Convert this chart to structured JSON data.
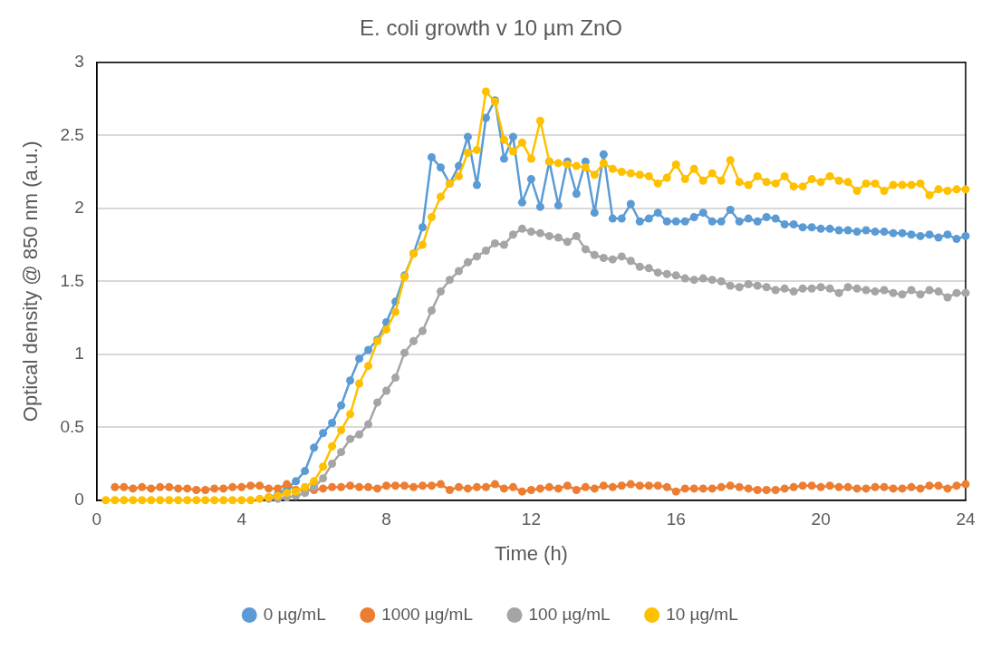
{
  "chart_data": {
    "type": "line",
    "title": "E. coli growth v 10 µm ZnO",
    "xlabel": "Time (h)",
    "ylabel": "Optical density @ 850 nm (a.u.)",
    "x": [
      0.25,
      0.5,
      0.75,
      1,
      1.25,
      1.5,
      1.75,
      2,
      2.25,
      2.5,
      2.75,
      3,
      3.25,
      3.5,
      3.75,
      4,
      4.25,
      4.5,
      4.75,
      5,
      5.25,
      5.5,
      5.75,
      6,
      6.25,
      6.5,
      6.75,
      7,
      7.25,
      7.5,
      7.75,
      8,
      8.25,
      8.5,
      8.75,
      9,
      9.25,
      9.5,
      9.75,
      10,
      10.25,
      10.5,
      10.75,
      11,
      11.25,
      11.5,
      11.75,
      12,
      12.25,
      12.5,
      12.75,
      13,
      13.25,
      13.5,
      13.75,
      14,
      14.25,
      14.5,
      14.75,
      15,
      15.25,
      15.5,
      15.75,
      16,
      16.25,
      16.5,
      16.75,
      17,
      17.25,
      17.5,
      17.75,
      18,
      18.25,
      18.5,
      18.75,
      19,
      19.25,
      19.5,
      19.75,
      20,
      20.25,
      20.5,
      20.75,
      21,
      21.25,
      21.5,
      21.75,
      22,
      22.25,
      22.5,
      22.75,
      23,
      23.25,
      23.5,
      23.75,
      24
    ],
    "series": [
      {
        "name": "0 µg/mL",
        "color": "#5b9bd5",
        "values": [
          null,
          null,
          null,
          null,
          null,
          null,
          null,
          null,
          null,
          null,
          null,
          null,
          null,
          null,
          null,
          null,
          null,
          null,
          0.02,
          0.04,
          0.08,
          0.13,
          0.2,
          0.36,
          0.46,
          0.53,
          0.65,
          0.82,
          0.97,
          1.03,
          1.1,
          1.22,
          1.36,
          1.54,
          1.69,
          1.87,
          2.35,
          2.28,
          2.17,
          2.29,
          2.49,
          2.16,
          2.62,
          2.74,
          2.34,
          2.49,
          2.04,
          2.2,
          2.01,
          2.32,
          2.02,
          2.32,
          2.1,
          2.32,
          1.97,
          2.37,
          1.93,
          1.93,
          2.03,
          1.91,
          1.93,
          1.97,
          1.91,
          1.91,
          1.91,
          1.94,
          1.97,
          1.91,
          1.91,
          1.99,
          1.91,
          1.93,
          1.91,
          1.94,
          1.93,
          1.89,
          1.89,
          1.87,
          1.87,
          1.86,
          1.86,
          1.85,
          1.85,
          1.84,
          1.85,
          1.84,
          1.84,
          1.83,
          1.83,
          1.82,
          1.81,
          1.82,
          1.8,
          1.82,
          1.79,
          1.81
        ]
      },
      {
        "name": "1000 µg/mL",
        "color": "#ed7d31",
        "values": [
          null,
          0.09,
          0.09,
          0.08,
          0.09,
          0.08,
          0.09,
          0.09,
          0.08,
          0.08,
          0.07,
          0.07,
          0.08,
          0.08,
          0.09,
          0.09,
          0.1,
          0.1,
          0.08,
          0.08,
          0.11,
          0.07,
          0.07,
          0.07,
          0.08,
          0.09,
          0.09,
          0.1,
          0.09,
          0.09,
          0.08,
          0.1,
          0.1,
          0.1,
          0.09,
          0.1,
          0.1,
          0.11,
          0.07,
          0.09,
          0.08,
          0.09,
          0.09,
          0.11,
          0.08,
          0.09,
          0.06,
          0.07,
          0.08,
          0.09,
          0.08,
          0.1,
          0.07,
          0.09,
          0.08,
          0.1,
          0.09,
          0.1,
          0.11,
          0.1,
          0.1,
          0.1,
          0.09,
          0.06,
          0.08,
          0.08,
          0.08,
          0.08,
          0.09,
          0.1,
          0.09,
          0.08,
          0.07,
          0.07,
          0.07,
          0.08,
          0.09,
          0.1,
          0.1,
          0.09,
          0.1,
          0.09,
          0.09,
          0.08,
          0.08,
          0.09,
          0.09,
          0.08,
          0.08,
          0.09,
          0.08,
          0.1,
          0.1,
          0.08,
          0.1,
          0.11
        ]
      },
      {
        "name": "100 µg/mL",
        "color": "#a5a5a5",
        "values": [
          null,
          null,
          null,
          null,
          null,
          null,
          null,
          null,
          null,
          null,
          null,
          null,
          null,
          null,
          null,
          null,
          null,
          null,
          0.01,
          0.01,
          0.02,
          0.03,
          0.05,
          0.09,
          0.15,
          0.25,
          0.33,
          0.42,
          0.45,
          0.52,
          0.67,
          0.75,
          0.84,
          1.01,
          1.09,
          1.16,
          1.3,
          1.43,
          1.51,
          1.57,
          1.63,
          1.67,
          1.71,
          1.76,
          1.75,
          1.82,
          1.86,
          1.84,
          1.83,
          1.81,
          1.8,
          1.77,
          1.81,
          1.72,
          1.68,
          1.66,
          1.65,
          1.67,
          1.64,
          1.6,
          1.59,
          1.56,
          1.55,
          1.54,
          1.52,
          1.51,
          1.52,
          1.51,
          1.5,
          1.47,
          1.46,
          1.48,
          1.47,
          1.46,
          1.44,
          1.45,
          1.43,
          1.45,
          1.45,
          1.46,
          1.45,
          1.42,
          1.46,
          1.45,
          1.44,
          1.43,
          1.44,
          1.42,
          1.41,
          1.44,
          1.41,
          1.44,
          1.43,
          1.39,
          1.42,
          1.42
        ]
      },
      {
        "name": "10 µg/mL",
        "color": "#ffc000",
        "values": [
          0,
          0,
          0,
          0,
          0,
          0,
          0,
          0,
          0,
          0,
          0,
          0,
          0,
          0,
          0,
          0,
          0,
          0.01,
          0.02,
          0.03,
          0.05,
          0.06,
          0.09,
          0.13,
          0.23,
          0.37,
          0.48,
          0.59,
          0.8,
          0.92,
          1.09,
          1.17,
          1.29,
          1.53,
          1.69,
          1.75,
          1.94,
          2.08,
          2.17,
          2.22,
          2.38,
          2.4,
          2.8,
          2.73,
          2.47,
          2.39,
          2.45,
          2.34,
          2.6,
          2.32,
          2.31,
          2.3,
          2.29,
          2.28,
          2.23,
          2.31,
          2.27,
          2.25,
          2.24,
          2.23,
          2.22,
          2.17,
          2.21,
          2.3,
          2.2,
          2.27,
          2.19,
          2.24,
          2.19,
          2.33,
          2.18,
          2.16,
          2.22,
          2.18,
          2.17,
          2.22,
          2.15,
          2.15,
          2.2,
          2.18,
          2.22,
          2.19,
          2.18,
          2.12,
          2.17,
          2.17,
          2.12,
          2.16,
          2.16,
          2.16,
          2.17,
          2.09,
          2.13,
          2.12,
          2.13,
          2.13
        ]
      }
    ],
    "xlim": [
      0,
      24
    ],
    "xticks": [
      0,
      4,
      8,
      12,
      16,
      20,
      24
    ],
    "ylim": [
      0,
      3
    ],
    "yticks": [
      0,
      0.5,
      1,
      1.5,
      2,
      2.5,
      3
    ],
    "grid": "y",
    "legend": "bottom",
    "marker": "circle",
    "line_style": "solid"
  }
}
